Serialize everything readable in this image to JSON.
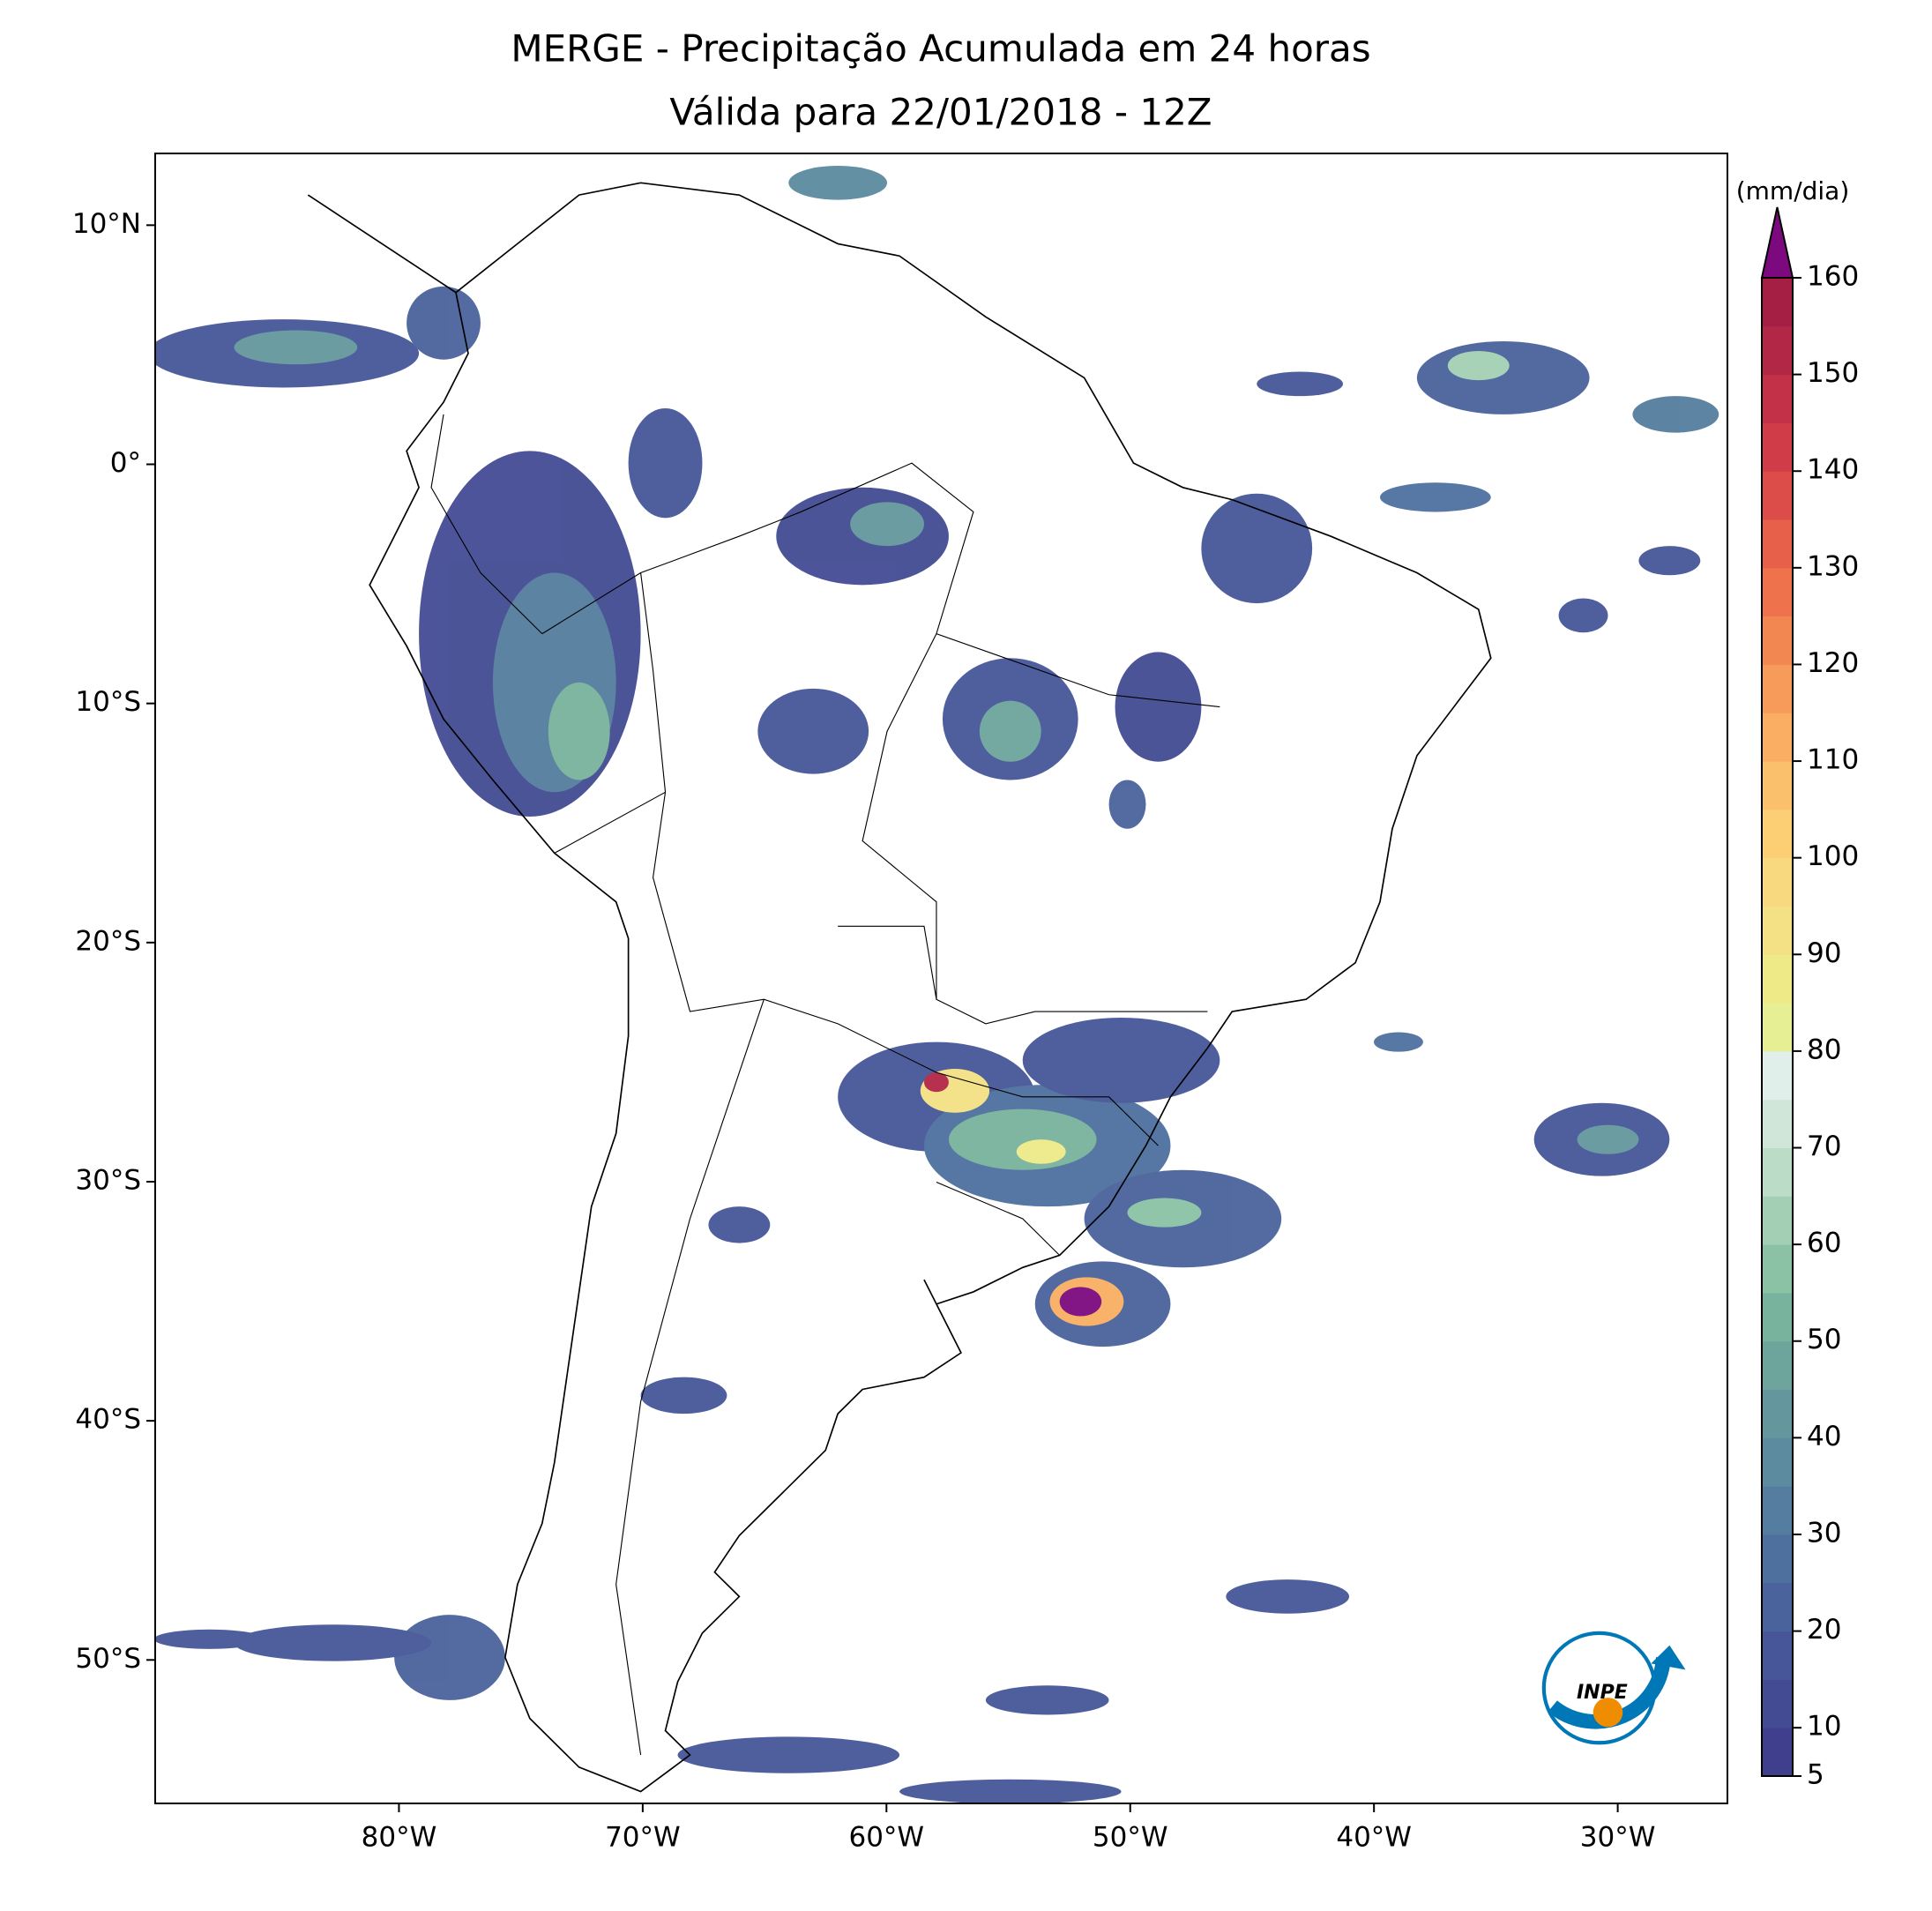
{
  "title": "MERGE - Precipitação Acumulada em 24 horas",
  "subtitle": "Válida para 22/01/2018 - 12Z",
  "logo": "INPE",
  "map": {
    "lonlim": [
      -90,
      -25.5
    ],
    "latlim": [
      -56,
      13
    ],
    "lon_ticks": [
      {
        "value": -80,
        "label": "80°W"
      },
      {
        "value": -70,
        "label": "70°W"
      },
      {
        "value": -60,
        "label": "60°W"
      },
      {
        "value": -50,
        "label": "50°W"
      },
      {
        "value": -40,
        "label": "40°W"
      },
      {
        "value": -30,
        "label": "30°W"
      }
    ],
    "lat_ticks": [
      {
        "value": 10,
        "label": "10°N"
      },
      {
        "value": 0,
        "label": "0°"
      },
      {
        "value": -10,
        "label": "10°S"
      },
      {
        "value": -20,
        "label": "20°S"
      },
      {
        "value": -30,
        "label": "30°S"
      },
      {
        "value": -40,
        "label": "40°S"
      },
      {
        "value": -50,
        "label": "50°S"
      }
    ]
  },
  "colorbar": {
    "unit": "(mm/dia)",
    "lim": [
      5,
      160
    ],
    "ticks": [
      5,
      10,
      20,
      30,
      40,
      50,
      60,
      70,
      80,
      90,
      100,
      110,
      120,
      130,
      140,
      150,
      160
    ],
    "colors": [
      "#3f3f8d",
      "#434b93",
      "#465698",
      "#4a639c",
      "#4e709f",
      "#557d9f",
      "#5c8a9e",
      "#64979d",
      "#6da59d",
      "#78b39e",
      "#8bc2a6",
      "#a3d0b4",
      "#bbdcc6",
      "#d0e6d9",
      "#e0efe9",
      "#e6ef93",
      "#eeea88",
      "#f4e185",
      "#f9d97f",
      "#fdcf75",
      "#fbc06b",
      "#f9ae63",
      "#f69b59",
      "#f38752",
      "#ee734d",
      "#e6604a",
      "#dc4c48",
      "#d03d48",
      "#c23148",
      "#b32746",
      "#a51f45"
    ],
    "extend_color": "#7c0a7e"
  }
}
